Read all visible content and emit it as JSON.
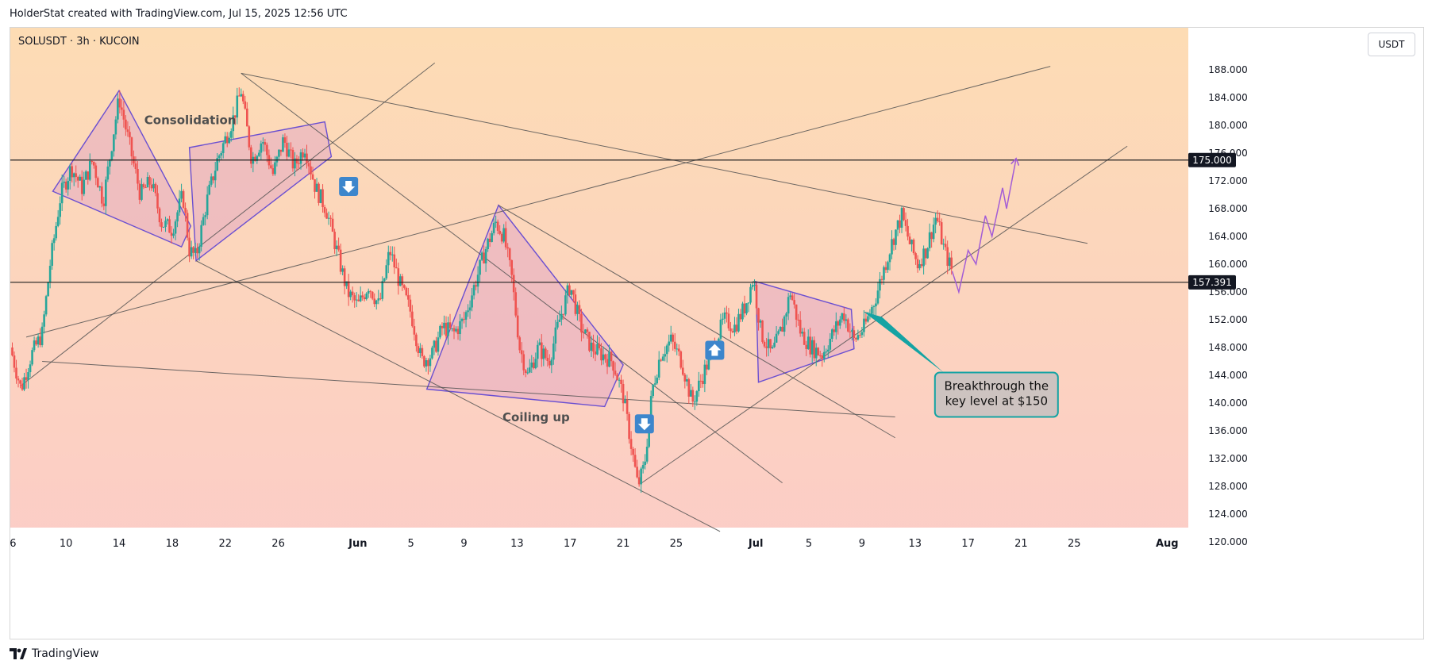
{
  "header": {
    "credit": "HolderStat created with TradingView.com, Jul 15, 2025 12:56 UTC"
  },
  "chart": {
    "symbol": "SOLUSDT · 3h · KUCOIN",
    "currency_button": "USDT",
    "axis_color": "#131722",
    "price_tags": [
      {
        "value": "175.000",
        "price": 175.0
      },
      {
        "value": "157.391",
        "price": 157.391
      }
    ],
    "annotations": {
      "consolidation": "Consolidation",
      "coiling": "Coiling up",
      "callout_line1": "Breakthrough the",
      "callout_line2": "key level at $150"
    },
    "colors": {
      "bg_top": "#fddcb4",
      "bg_bottom": "#fbcaca",
      "up": "#26a69a",
      "down": "#ef5350",
      "pattern_stroke": "#6a4fd1",
      "pattern_fill": "#e3a9c3",
      "trendline": "#525252",
      "callout_border": "#14a3a3",
      "callout_fill": "#cdc3c0",
      "arrow_blue": "#3d86cc",
      "projection": "#a35dd6"
    }
  },
  "chart_data": {
    "type": "line",
    "title": "SOLUSDT · 3h · KUCOIN",
    "xlabel": "",
    "ylabel": "",
    "ylim": [
      120,
      192
    ],
    "y_ticks": [
      120,
      124,
      128,
      132,
      136,
      140,
      144,
      148,
      152,
      156,
      160,
      164,
      168,
      172,
      176,
      180,
      184,
      188
    ],
    "y_tick_labels": [
      "120.000",
      "124.000",
      "128.000",
      "132.000",
      "136.000",
      "140.000",
      "144.000",
      "148.000",
      "152.000",
      "156.000",
      "160.000",
      "164.000",
      "168.000",
      "172.000",
      "176.000",
      "180.000",
      "184.000",
      "188.000"
    ],
    "x_ticks": [
      {
        "label": "6",
        "day": 6
      },
      {
        "label": "10",
        "day": 10
      },
      {
        "label": "14",
        "day": 14
      },
      {
        "label": "18",
        "day": 18
      },
      {
        "label": "22",
        "day": 22
      },
      {
        "label": "26",
        "day": 26
      },
      {
        "label": "Jun",
        "day": 32
      },
      {
        "label": "5",
        "day": 36
      },
      {
        "label": "9",
        "day": 40
      },
      {
        "label": "13",
        "day": 44
      },
      {
        "label": "17",
        "day": 48
      },
      {
        "label": "21",
        "day": 52
      },
      {
        "label": "25",
        "day": 56
      },
      {
        "label": "Jul",
        "day": 62
      },
      {
        "label": "5",
        "day": 66
      },
      {
        "label": "9",
        "day": 70
      },
      {
        "label": "13",
        "day": 74
      },
      {
        "label": "17",
        "day": 78
      },
      {
        "label": "21",
        "day": 82
      },
      {
        "label": "25",
        "day": 86
      },
      {
        "label": "Aug",
        "day": 93
      }
    ],
    "x_range_days": [
      5.8,
      94.6
    ],
    "series": [
      {
        "values": [
          {
            "day": 5.8,
            "price": 148
          },
          {
            "day": 6.6,
            "price": 142
          },
          {
            "day": 7.4,
            "price": 147
          },
          {
            "day": 8.2,
            "price": 150
          },
          {
            "day": 8.8,
            "price": 160
          },
          {
            "day": 9.6,
            "price": 170
          },
          {
            "day": 10.4,
            "price": 174
          },
          {
            "day": 11.2,
            "price": 171
          },
          {
            "day": 12.0,
            "price": 175
          },
          {
            "day": 12.8,
            "price": 169
          },
          {
            "day": 13.5,
            "price": 178
          },
          {
            "day": 14.0,
            "price": 184
          },
          {
            "day": 14.8,
            "price": 177
          },
          {
            "day": 15.6,
            "price": 170
          },
          {
            "day": 16.4,
            "price": 172
          },
          {
            "day": 17.2,
            "price": 166
          },
          {
            "day": 18.0,
            "price": 165
          },
          {
            "day": 18.8,
            "price": 170
          },
          {
            "day": 19.3,
            "price": 162
          },
          {
            "day": 19.8,
            "price": 161
          },
          {
            "day": 20.6,
            "price": 169
          },
          {
            "day": 21.4,
            "price": 175
          },
          {
            "day": 22.0,
            "price": 178
          },
          {
            "day": 22.6,
            "price": 181
          },
          {
            "day": 23.2,
            "price": 185
          },
          {
            "day": 24.0,
            "price": 175
          },
          {
            "day": 24.8,
            "price": 178
          },
          {
            "day": 25.6,
            "price": 173
          },
          {
            "day": 26.4,
            "price": 178
          },
          {
            "day": 27.2,
            "price": 174
          },
          {
            "day": 28.0,
            "price": 177
          },
          {
            "day": 28.8,
            "price": 171
          },
          {
            "day": 29.6,
            "price": 168
          },
          {
            "day": 30.4,
            "price": 162
          },
          {
            "day": 31.2,
            "price": 156
          },
          {
            "day": 32.0,
            "price": 154
          },
          {
            "day": 32.8,
            "price": 157
          },
          {
            "day": 33.6,
            "price": 154
          },
          {
            "day": 34.4,
            "price": 162
          },
          {
            "day": 35.2,
            "price": 157
          },
          {
            "day": 36.0,
            "price": 153
          },
          {
            "day": 36.8,
            "price": 146
          },
          {
            "day": 37.6,
            "price": 147
          },
          {
            "day": 38.4,
            "price": 151
          },
          {
            "day": 39.2,
            "price": 150
          },
          {
            "day": 40.0,
            "price": 152
          },
          {
            "day": 40.8,
            "price": 157
          },
          {
            "day": 41.6,
            "price": 162
          },
          {
            "day": 42.4,
            "price": 166
          },
          {
            "day": 43.0,
            "price": 164
          },
          {
            "day": 43.6,
            "price": 158
          },
          {
            "day": 44.2,
            "price": 148
          },
          {
            "day": 44.8,
            "price": 144
          },
          {
            "day": 45.6,
            "price": 148
          },
          {
            "day": 46.4,
            "price": 146
          },
          {
            "day": 47.2,
            "price": 152
          },
          {
            "day": 48.0,
            "price": 157
          },
          {
            "day": 48.8,
            "price": 151
          },
          {
            "day": 49.6,
            "price": 148
          },
          {
            "day": 50.4,
            "price": 147
          },
          {
            "day": 51.2,
            "price": 146
          },
          {
            "day": 52.0,
            "price": 141
          },
          {
            "day": 52.6,
            "price": 134
          },
          {
            "day": 53.1,
            "price": 128
          },
          {
            "day": 53.6,
            "price": 131
          },
          {
            "day": 54.2,
            "price": 142
          },
          {
            "day": 54.8,
            "price": 147
          },
          {
            "day": 55.6,
            "price": 149
          },
          {
            "day": 56.4,
            "price": 146
          },
          {
            "day": 57.2,
            "price": 140
          },
          {
            "day": 58.0,
            "price": 144
          },
          {
            "day": 58.8,
            "price": 148
          },
          {
            "day": 59.6,
            "price": 152
          },
          {
            "day": 60.4,
            "price": 151
          },
          {
            "day": 61.2,
            "price": 154
          },
          {
            "day": 61.8,
            "price": 158
          },
          {
            "day": 62.4,
            "price": 150
          },
          {
            "day": 63.2,
            "price": 147
          },
          {
            "day": 64.0,
            "price": 151
          },
          {
            "day": 64.6,
            "price": 156
          },
          {
            "day": 65.4,
            "price": 150
          },
          {
            "day": 66.2,
            "price": 148
          },
          {
            "day": 67.0,
            "price": 147
          },
          {
            "day": 67.8,
            "price": 150
          },
          {
            "day": 68.6,
            "price": 153
          },
          {
            "day": 69.4,
            "price": 149
          },
          {
            "day": 70.2,
            "price": 151
          },
          {
            "day": 71.0,
            "price": 155
          },
          {
            "day": 71.6,
            "price": 159
          },
          {
            "day": 72.4,
            "price": 164
          },
          {
            "day": 73.0,
            "price": 167
          },
          {
            "day": 73.6,
            "price": 163
          },
          {
            "day": 74.2,
            "price": 160
          },
          {
            "day": 74.8,
            "price": 162
          },
          {
            "day": 75.6,
            "price": 167
          },
          {
            "day": 76.2,
            "price": 162
          },
          {
            "day": 76.8,
            "price": 159
          }
        ]
      },
      {
        "values": [
          {
            "day": 76.8,
            "price": 159
          },
          {
            "day": 77.3,
            "price": 156
          },
          {
            "day": 78.0,
            "price": 162
          },
          {
            "day": 78.6,
            "price": 160
          },
          {
            "day": 79.3,
            "price": 167
          },
          {
            "day": 79.8,
            "price": 164
          },
          {
            "day": 80.6,
            "price": 171
          },
          {
            "day": 80.9,
            "price": 168
          },
          {
            "day": 81.6,
            "price": 175
          }
        ]
      }
    ],
    "horizontal_levels": [
      175.0,
      157.391
    ],
    "annotations": [
      "Consolidation",
      "Coiling up",
      "Breakthrough the key level at $150"
    ],
    "grid": false
  }
}
